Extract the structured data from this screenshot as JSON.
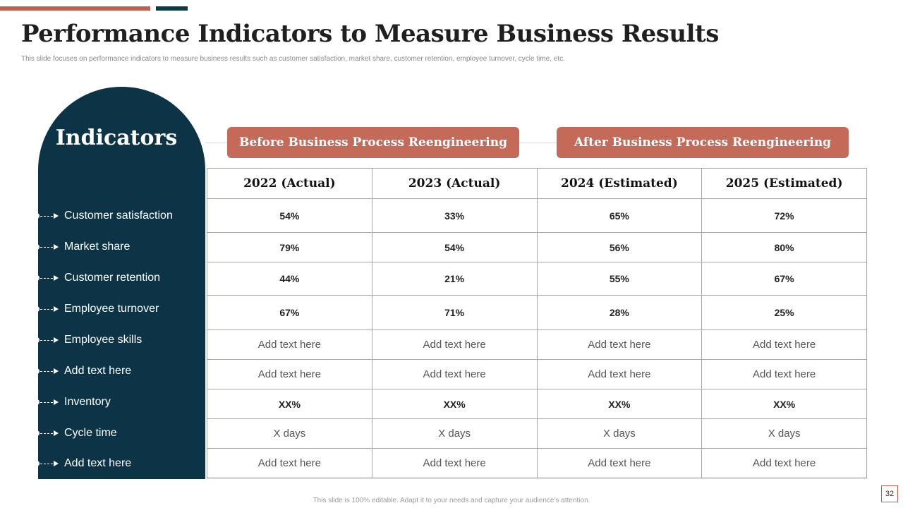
{
  "slide": {
    "title": "Performance Indicators to Measure Business Results",
    "subtitle": "This slide focuses on performance indicators to measure business results such as customer satisfaction, market share, customer retention, employee turnover, cycle time, etc.",
    "footer": "This slide is 100% editable. Adapt it to your needs and capture your audience’s attention.",
    "page_number": "32"
  },
  "indicators": {
    "title": "Indicators",
    "items": [
      "Customer satisfaction",
      "Market share",
      "Customer retention",
      "Employee turnover",
      "Employee skills",
      "Add text here",
      "Inventory",
      "Cycle time",
      "Add text here"
    ]
  },
  "group_headers": {
    "before": "Before Business Process Reengineering",
    "after": "After Business Process Reengineering"
  },
  "table": {
    "columns": [
      "2022 (Actual)",
      "2023 (Actual)",
      "2024 (Estimated)",
      "2025 (Estimated)"
    ],
    "rows": [
      [
        "54%",
        "33%",
        "65%",
        "72%"
      ],
      [
        "79%",
        "54%",
        "56%",
        "80%"
      ],
      [
        "44%",
        "21%",
        "55%",
        "67%"
      ],
      [
        "67%",
        "71%",
        "28%",
        "25%"
      ],
      [
        "Add text here",
        "Add text here",
        "Add text here",
        "Add text here"
      ],
      [
        "Add text here",
        "Add text here",
        "Add text here",
        "Add text here"
      ],
      [
        "XX%",
        "XX%",
        "XX%",
        "XX%"
      ],
      [
        "X days",
        "X days",
        "X days",
        "X days"
      ],
      [
        "Add text here",
        "Add text here",
        "Add text here",
        "Add text here"
      ]
    ]
  },
  "colors": {
    "accent": "#c56a58",
    "navy": "#0d3346"
  }
}
